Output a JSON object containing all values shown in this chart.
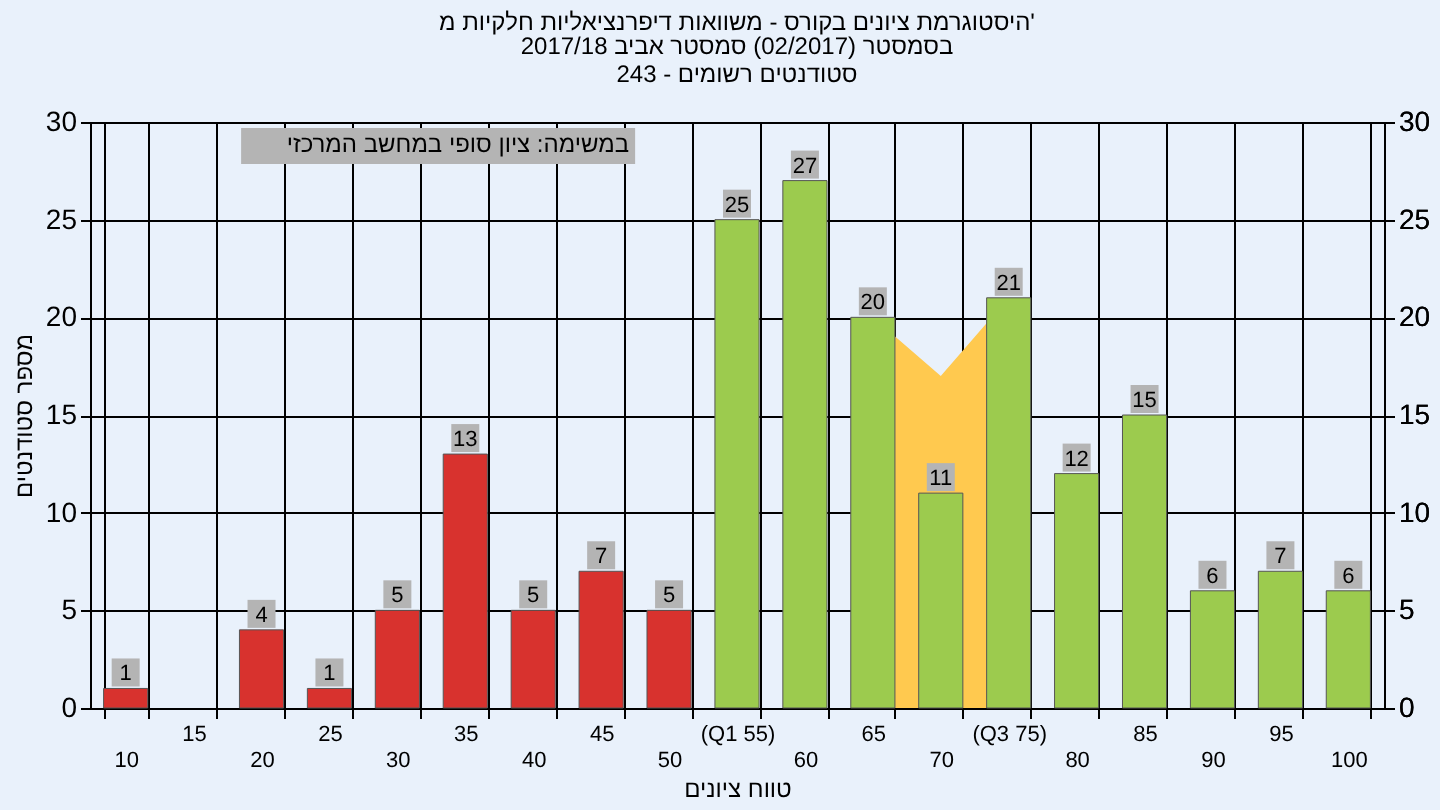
{
  "chart_data": {
    "type": "bar",
    "title": "היסטוגרמת ציונים בקורס - משוואות דיפרנציאליות חלקיות מ'",
    "subtitle": "בסמסטר (02/2017) סמסטר אביב 2017/18\nסטודנטים רשומים - 243",
    "xlabel": "טווח ציונים",
    "ylabel": "מספר סטודנטים",
    "annotations": [
      "במשימה: ציון סופי במחשב המרכזי"
    ],
    "categories": [
      "10",
      "15",
      "20",
      "25",
      "30",
      "35",
      "40",
      "45",
      "50",
      "(Q1 55)",
      "60",
      "65",
      "70",
      "(Q3 75)",
      "80",
      "85",
      "90",
      "95",
      "100"
    ],
    "series": [
      {
        "type": "area",
        "color": "#ffc94f",
        "values": [
          null,
          null,
          null,
          null,
          null,
          null,
          null,
          null,
          null,
          null,
          null,
          20,
          17,
          21,
          null,
          null,
          null,
          null,
          null
        ]
      },
      {
        "value_labels": [
          "1",
          null,
          "4",
          "1",
          "5",
          "13",
          "5",
          "7",
          "5",
          "25",
          "27",
          "20",
          "11",
          "21",
          "12",
          "15",
          "6",
          "7",
          "6"
        ],
        "colors": [
          "#d8322e",
          "#d8322e",
          "#d8322e",
          "#d8322e",
          "#d8322e",
          "#d8322e",
          "#d8322e",
          "#d8322e",
          "#d8322e",
          "#9ccb4e",
          "#9ccb4e",
          "#9ccb4e",
          "#9ccb4e",
          "#9ccb4e",
          "#9ccb4e",
          "#9ccb4e",
          "#9ccb4e",
          "#9ccb4e",
          "#9ccb4e"
        ],
        "values": [
          1,
          null,
          4,
          1,
          5,
          13,
          5,
          7,
          5,
          25,
          27,
          20,
          11,
          21,
          12,
          15,
          6,
          7,
          6
        ]
      }
    ],
    "ylim": [
      0,
      30
    ],
    "yticks": [
      0,
      5,
      10,
      15,
      20,
      25,
      30
    ],
    "y2lim": [
      0,
      30
    ],
    "y2ticks": [
      0,
      5,
      10,
      15,
      20,
      25,
      30
    ],
    "grid": true
  }
}
